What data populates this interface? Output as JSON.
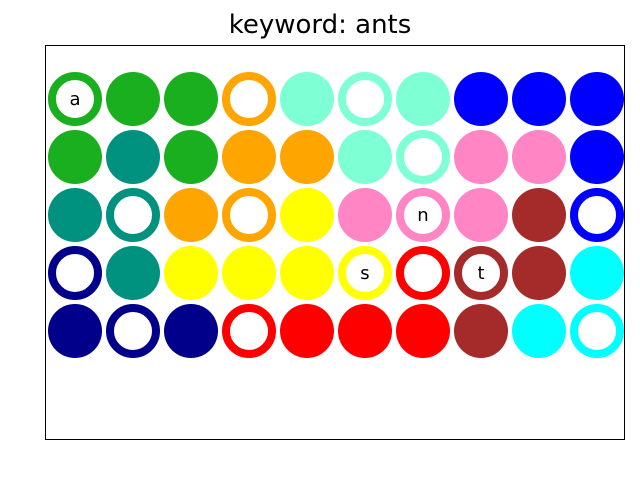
{
  "title": "keyword: ants",
  "palette": {
    "green": "#1aaf1e",
    "teal": "#00917f",
    "orange": "#ffa500",
    "aquamarine": "#7fffd4",
    "blue": "#0000ff",
    "pink": "#ff85c4",
    "yellow": "#ffff00",
    "brown": "#a52a2a",
    "navy": "#00008b",
    "cyan": "#00ffff",
    "red": "#ff0000"
  },
  "grid": [
    [
      {
        "color": "green",
        "style": "ring",
        "letter": "a"
      },
      {
        "color": "green",
        "style": "solid",
        "letter": ""
      },
      {
        "color": "green",
        "style": "solid",
        "letter": ""
      },
      {
        "color": "orange",
        "style": "ring",
        "letter": ""
      },
      {
        "color": "aquamarine",
        "style": "solid",
        "letter": ""
      },
      {
        "color": "aquamarine",
        "style": "ring",
        "letter": ""
      },
      {
        "color": "aquamarine",
        "style": "solid",
        "letter": ""
      },
      {
        "color": "blue",
        "style": "solid",
        "letter": ""
      },
      {
        "color": "blue",
        "style": "solid",
        "letter": ""
      },
      {
        "color": "blue",
        "style": "solid",
        "letter": ""
      }
    ],
    [
      {
        "color": "green",
        "style": "solid",
        "letter": ""
      },
      {
        "color": "teal",
        "style": "solid",
        "letter": ""
      },
      {
        "color": "green",
        "style": "solid",
        "letter": ""
      },
      {
        "color": "orange",
        "style": "solid",
        "letter": ""
      },
      {
        "color": "orange",
        "style": "solid",
        "letter": ""
      },
      {
        "color": "aquamarine",
        "style": "solid",
        "letter": ""
      },
      {
        "color": "aquamarine",
        "style": "ring",
        "letter": ""
      },
      {
        "color": "pink",
        "style": "solid",
        "letter": ""
      },
      {
        "color": "pink",
        "style": "solid",
        "letter": ""
      },
      {
        "color": "blue",
        "style": "solid",
        "letter": ""
      }
    ],
    [
      {
        "color": "teal",
        "style": "solid",
        "letter": ""
      },
      {
        "color": "teal",
        "style": "ring",
        "letter": ""
      },
      {
        "color": "orange",
        "style": "solid",
        "letter": ""
      },
      {
        "color": "orange",
        "style": "ring",
        "letter": ""
      },
      {
        "color": "yellow",
        "style": "solid",
        "letter": ""
      },
      {
        "color": "pink",
        "style": "solid",
        "letter": ""
      },
      {
        "color": "pink",
        "style": "ring",
        "letter": "n"
      },
      {
        "color": "pink",
        "style": "solid",
        "letter": ""
      },
      {
        "color": "brown",
        "style": "solid",
        "letter": ""
      },
      {
        "color": "blue",
        "style": "ring",
        "letter": ""
      }
    ],
    [
      {
        "color": "navy",
        "style": "ring",
        "letter": ""
      },
      {
        "color": "teal",
        "style": "solid",
        "letter": ""
      },
      {
        "color": "yellow",
        "style": "solid",
        "letter": ""
      },
      {
        "color": "yellow",
        "style": "solid",
        "letter": ""
      },
      {
        "color": "yellow",
        "style": "solid",
        "letter": ""
      },
      {
        "color": "yellow",
        "style": "ring",
        "letter": "s"
      },
      {
        "color": "red",
        "style": "ring",
        "letter": ""
      },
      {
        "color": "brown",
        "style": "ring",
        "letter": "t"
      },
      {
        "color": "brown",
        "style": "solid",
        "letter": ""
      },
      {
        "color": "cyan",
        "style": "solid",
        "letter": ""
      }
    ],
    [
      {
        "color": "navy",
        "style": "solid",
        "letter": ""
      },
      {
        "color": "navy",
        "style": "ring",
        "letter": ""
      },
      {
        "color": "navy",
        "style": "solid",
        "letter": ""
      },
      {
        "color": "red",
        "style": "ring",
        "letter": ""
      },
      {
        "color": "red",
        "style": "solid",
        "letter": ""
      },
      {
        "color": "red",
        "style": "solid",
        "letter": ""
      },
      {
        "color": "red",
        "style": "solid",
        "letter": ""
      },
      {
        "color": "brown",
        "style": "solid",
        "letter": ""
      },
      {
        "color": "cyan",
        "style": "solid",
        "letter": ""
      },
      {
        "color": "cyan",
        "style": "ring",
        "letter": ""
      }
    ]
  ]
}
